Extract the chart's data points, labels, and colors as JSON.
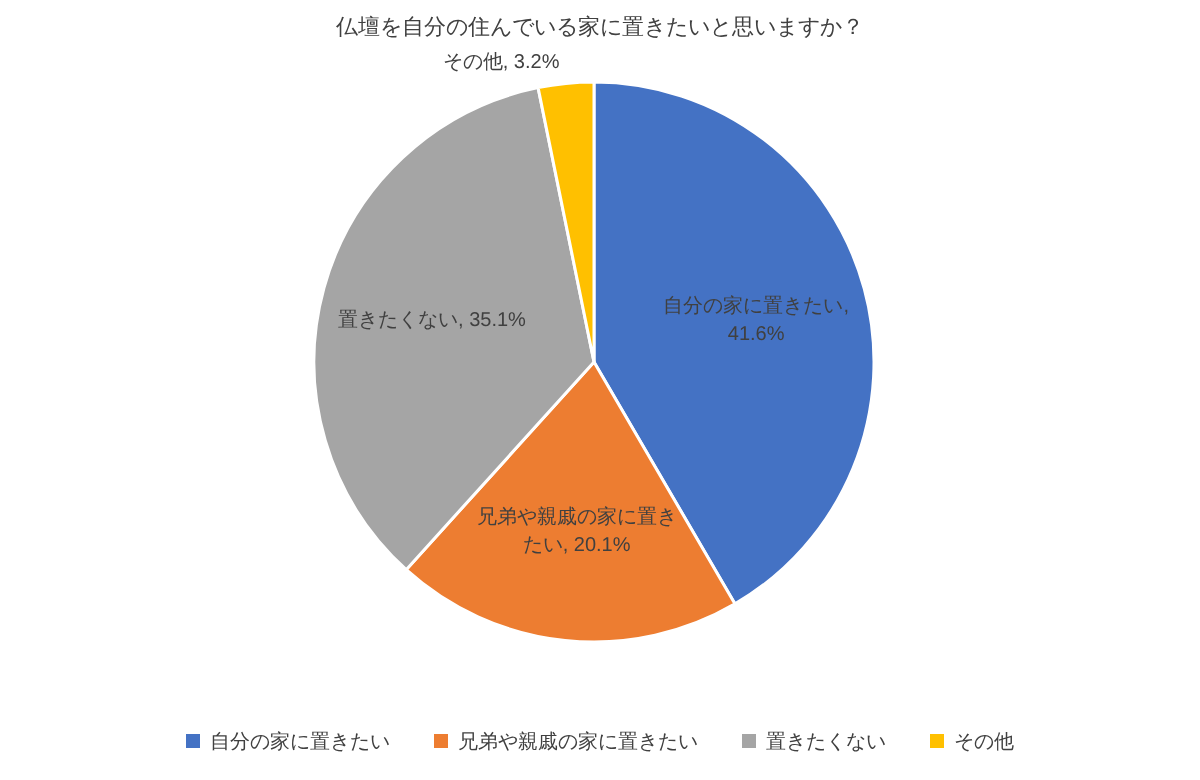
{
  "chart_data": {
    "type": "pie",
    "title": "仏壇を自分の住んでいる家に置きたいと思いますか？",
    "categories": [
      "自分の家に置きたい",
      "兄弟や親戚の家に置きたい",
      "置きたくない",
      "その他"
    ],
    "values": [
      41.6,
      20.1,
      35.1,
      3.2
    ],
    "colors": [
      "#4472c4",
      "#ed7d31",
      "#a5a5a5",
      "#ffc000"
    ],
    "value_labels": [
      "自分の家に置きたい, 41.6%",
      "兄弟や親戚の家に置きたい, 20.1%",
      "置きたくない, 35.1%",
      "その他, 3.2%"
    ],
    "legend": "bottom"
  }
}
